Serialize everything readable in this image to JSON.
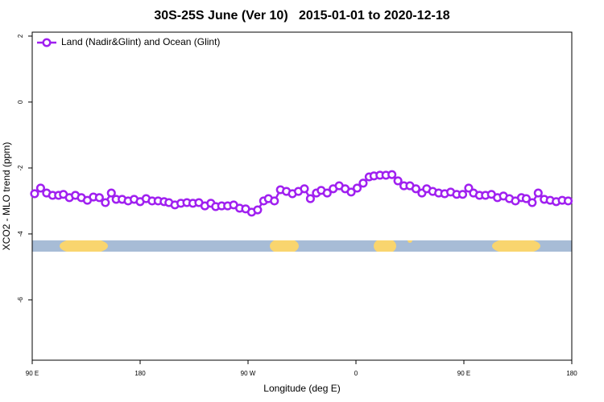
{
  "chart_data": {
    "type": "line",
    "title": "30S-25S June (Ver 10)   2015-01-01 to 2020-12-18",
    "x_label": "Longitude (deg E)",
    "y_label": "XCO2 - MLO trend (ppm)",
    "xlim": [
      90,
      540
    ],
    "ylim": [
      -7.83,
      2.12
    ],
    "xticks": [
      {
        "value": 90,
        "label": "90 E"
      },
      180,
      {
        "value": 270,
        "label": "90 W"
      },
      {
        "value": 360,
        "label": "0"
      },
      {
        "value": 450,
        "label": "90 E"
      },
      {
        "value": 540,
        "label": "180"
      }
    ],
    "yticks": [
      2,
      0,
      -2,
      -4,
      -6
    ],
    "legend": "top-left",
    "x": [
      92,
      97,
      102,
      107,
      112,
      116,
      121,
      126,
      131,
      136,
      141,
      146,
      151,
      156,
      160,
      165,
      170,
      175,
      180,
      185,
      190,
      195,
      200,
      204,
      209,
      214,
      219,
      224,
      229,
      234,
      239,
      243,
      248,
      253,
      258,
      263,
      268,
      273,
      278,
      283,
      287,
      292,
      297,
      302,
      307,
      312,
      317,
      322,
      327,
      331,
      336,
      341,
      346,
      351,
      356,
      361,
      366,
      371,
      375,
      380,
      385,
      390,
      395,
      400,
      405,
      410,
      415,
      419,
      424,
      429,
      434,
      439,
      444,
      449,
      454,
      458,
      463,
      468,
      473,
      478,
      483,
      488,
      493,
      498,
      502,
      507,
      512,
      517,
      522,
      527,
      532,
      537
    ],
    "series": [
      {
        "name": "Land (Nadir&Glint) and Ocean (Glint)",
        "color": "#a020f0",
        "values": [
          -2.78,
          -2.61,
          -2.76,
          -2.83,
          -2.83,
          -2.8,
          -2.9,
          -2.83,
          -2.9,
          -2.98,
          -2.88,
          -2.9,
          -3.05,
          -2.76,
          -2.95,
          -2.95,
          -3.0,
          -2.95,
          -3.02,
          -2.93,
          -3.0,
          -3.0,
          -3.02,
          -3.05,
          -3.12,
          -3.07,
          -3.05,
          -3.07,
          -3.05,
          -3.15,
          -3.07,
          -3.17,
          -3.15,
          -3.15,
          -3.12,
          -3.22,
          -3.24,
          -3.34,
          -3.27,
          -3.0,
          -2.93,
          -3.0,
          -2.66,
          -2.71,
          -2.78,
          -2.71,
          -2.63,
          -2.93,
          -2.76,
          -2.68,
          -2.76,
          -2.63,
          -2.54,
          -2.63,
          -2.73,
          -2.61,
          -2.46,
          -2.27,
          -2.24,
          -2.22,
          -2.22,
          -2.2,
          -2.39,
          -2.54,
          -2.54,
          -2.63,
          -2.76,
          -2.63,
          -2.71,
          -2.76,
          -2.78,
          -2.73,
          -2.8,
          -2.8,
          -2.61,
          -2.76,
          -2.83,
          -2.83,
          -2.8,
          -2.9,
          -2.85,
          -2.93,
          -3.0,
          -2.9,
          -2.93,
          -3.05,
          -2.76,
          -2.95,
          -2.98,
          -3.02,
          -2.98,
          -3.0
        ]
      }
    ]
  }
}
